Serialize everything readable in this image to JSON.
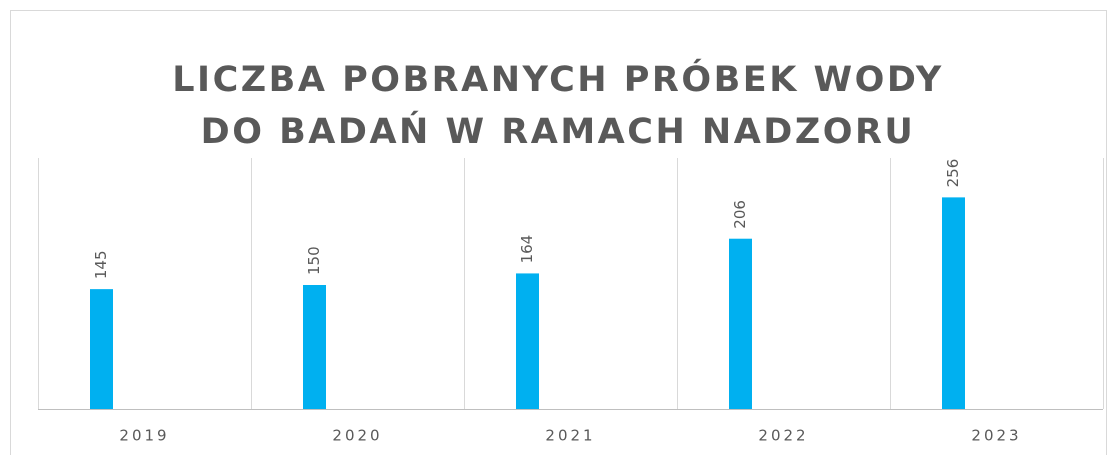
{
  "chart_data": {
    "type": "bar",
    "title": "LICZBA POBRANYCH PRÓBEK WODY DO BADAŃ W RAMACH NADZORU",
    "categories": [
      "2019",
      "2020",
      "2021",
      "2022",
      "2023"
    ],
    "values": [
      145,
      150,
      164,
      206,
      256
    ],
    "color": "#00b0f0",
    "ylim": [
      0,
      300
    ],
    "grid": true
  }
}
